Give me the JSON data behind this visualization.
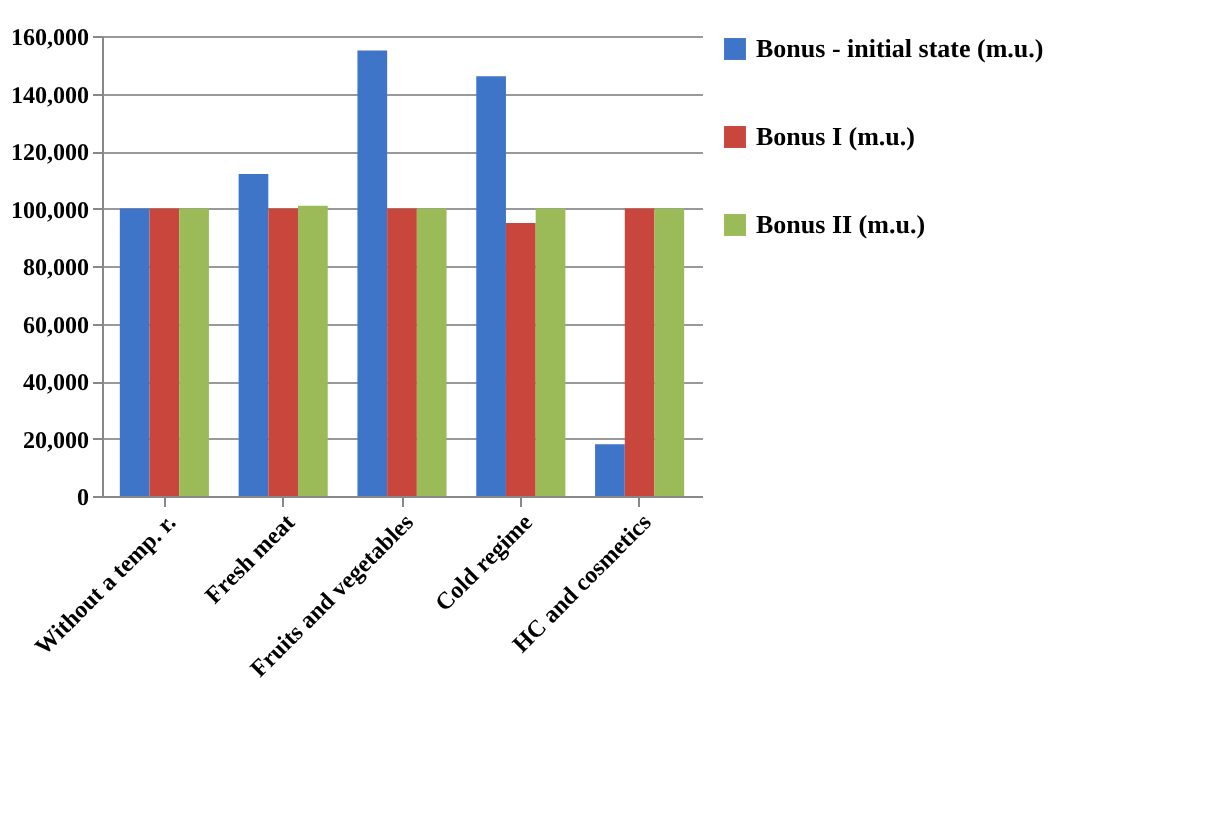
{
  "chart_data": {
    "type": "bar",
    "categories": [
      "Without a temp. r.",
      "Fresh meat",
      "Fruits and vegetables",
      "Cold regime",
      "HC and cosmetics"
    ],
    "series": [
      {
        "name": "Bonus - initial state (m.u.)",
        "color": "#3f75c8",
        "values": [
          100000,
          112000,
          155000,
          146000,
          18000
        ]
      },
      {
        "name": "Bonus I (m.u.)",
        "color": "#c9463d",
        "values": [
          100000,
          100000,
          100000,
          95000,
          100000
        ]
      },
      {
        "name": "Bonus II (m.u.)",
        "color": "#9bbb59",
        "values": [
          100000,
          101000,
          100000,
          100000,
          100000
        ]
      }
    ],
    "ylim": [
      0,
      160000
    ],
    "yticks": [
      0,
      {
        "value": 20000,
        "label": "20,000"
      },
      {
        "value": 40000,
        "label": "40,000"
      },
      {
        "value": 60000,
        "label": "60,000"
      },
      {
        "value": 80000,
        "label": "80,000"
      },
      {
        "value": 100000,
        "label": "100,000"
      },
      {
        "value": 120000,
        "label": "120,000"
      },
      {
        "value": 140000,
        "label": "140,000"
      },
      {
        "value": 160000,
        "label": "160,000"
      }
    ],
    "grid": "y",
    "legend": "right"
  }
}
